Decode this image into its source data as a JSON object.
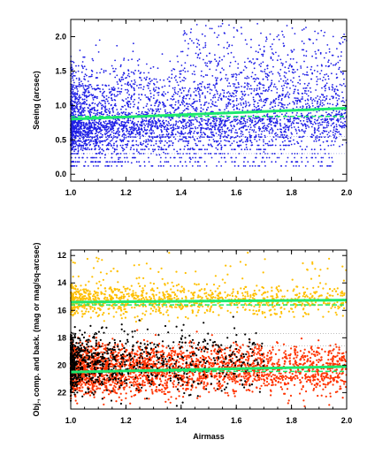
{
  "chart_data": [
    {
      "type": "scatter",
      "xlabel": "",
      "ylabel": "Seeing (arcsec)",
      "xlim": [
        1.0,
        2.0
      ],
      "ylim": [
        -0.1,
        2.25
      ],
      "xticks": [
        "1.0",
        "1.2",
        "1.4",
        "1.6",
        "1.8",
        "2.0"
      ],
      "yticks": [
        "0.0",
        "0.5",
        "1.0",
        "1.5",
        "2.0"
      ],
      "series": [
        {
          "color": "#1f1fe6",
          "x": [
            1.02,
            1.05,
            1.08,
            1.11,
            1.15,
            1.2,
            1.25,
            1.3,
            1.35,
            1.42,
            1.5,
            1.6,
            1.7,
            1.8,
            1.9,
            1.98
          ],
          "y": [
            0.85,
            0.7,
            1.1,
            0.6,
            0.9,
            1.3,
            0.75,
            0.65,
            1.0,
            0.8,
            0.9,
            1.2,
            0.85,
            1.4,
            0.9,
            1.0
          ]
        }
      ],
      "fit_lines": [
        {
          "color": "#1de96e",
          "style": "solid",
          "x": [
            1.0,
            2.0
          ],
          "y": [
            0.8,
            0.96
          ]
        },
        {
          "color": "#1de96e",
          "style": "dashed",
          "x": [
            1.0,
            2.0
          ],
          "y": [
            0.84,
            0.84
          ]
        }
      ],
      "ref_lines": [
        {
          "color": "#9aa0e0",
          "style": "dotted",
          "y": 0.3
        },
        {
          "color": "#9aa0e0",
          "style": "dotted",
          "y": 0.55
        }
      ]
    },
    {
      "type": "scatter",
      "xlabel": "Airmass",
      "ylabel": "Obj., comp. and back. (mag or mag/sq-arcsec)",
      "xlim": [
        1.0,
        2.0
      ],
      "ylim": [
        23.2,
        11.6
      ],
      "xticks": [
        "1.0",
        "1.2",
        "1.4",
        "1.6",
        "1.8",
        "2.0"
      ],
      "yticks": [
        "12",
        "14",
        "16",
        "18",
        "20",
        "22"
      ],
      "series": [
        {
          "color": "#ffbf00",
          "x": [
            1.02,
            1.08,
            1.15,
            1.25,
            1.35,
            1.45,
            1.55,
            1.7,
            1.85,
            1.97
          ],
          "y": [
            15.4,
            15.0,
            15.8,
            14.6,
            15.3,
            15.9,
            14.8,
            15.2,
            15.6,
            14.9
          ]
        },
        {
          "color": "#ff3300",
          "x": [
            1.02,
            1.08,
            1.15,
            1.25,
            1.35,
            1.45,
            1.55,
            1.7,
            1.85,
            1.97
          ],
          "y": [
            20.5,
            19.6,
            21.3,
            20.0,
            21.0,
            20.4,
            19.8,
            20.9,
            20.2,
            20.6
          ]
        },
        {
          "color": "#000000",
          "x": [
            1.02,
            1.05,
            1.08,
            1.12,
            1.18,
            1.25,
            1.32,
            1.4
          ],
          "y": [
            18.5,
            20.0,
            19.2,
            21.5,
            20.6,
            19.8,
            22.3,
            20.9
          ]
        }
      ],
      "fit_lines": [
        {
          "color": "#1de96e",
          "style": "solid",
          "x": [
            1.0,
            2.0
          ],
          "y": [
            15.4,
            15.25
          ]
        },
        {
          "color": "#1de96e",
          "style": "dashed",
          "x": [
            1.0,
            2.0
          ],
          "y": [
            15.6,
            15.6
          ]
        },
        {
          "color": "#1de96e",
          "style": "solid",
          "x": [
            1.0,
            2.0
          ],
          "y": [
            20.5,
            20.1
          ]
        },
        {
          "color": "#1de96e",
          "style": "dashed",
          "x": [
            1.0,
            2.0
          ],
          "y": [
            20.45,
            20.45
          ]
        }
      ],
      "ref_lines": [
        {
          "color": "#aaaaaa",
          "style": "dotted",
          "y": 17.7
        },
        {
          "color": "#aaaaaa",
          "style": "dotted",
          "y": 18.6
        }
      ]
    }
  ]
}
